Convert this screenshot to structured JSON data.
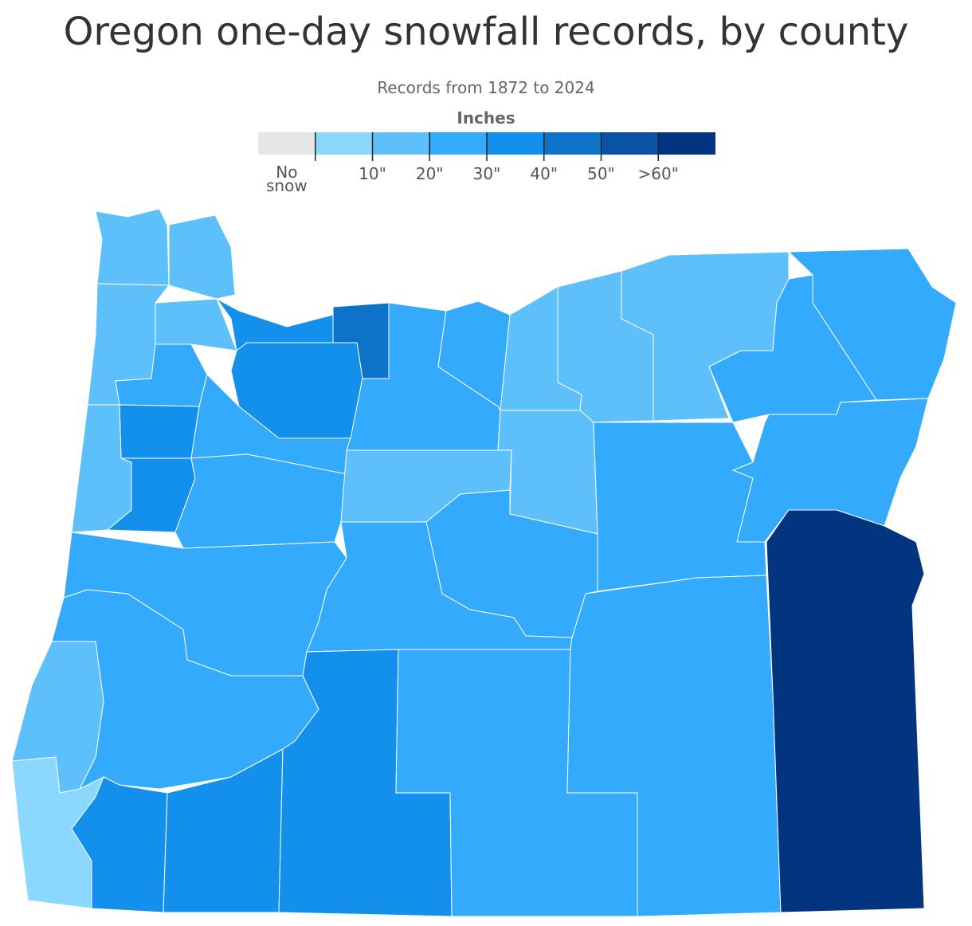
{
  "header": {
    "title": "Oregon one-day snowfall records, by county",
    "subtitle": "Records from 1872 to 2024"
  },
  "legend": {
    "title": "Inches",
    "colors": [
      "#e5e6e8",
      "#8bd8ff",
      "#5dc0fb",
      "#33aafc",
      "#1390ec",
      "#0e72c8",
      "#0a52a6",
      "#033480"
    ],
    "labels": [
      "No snow",
      "10\"",
      "20\"",
      "30\"",
      "40\"",
      "50\"",
      ">60\""
    ]
  },
  "counties": [
    {
      "bin": 2
    },
    {
      "bin": 2
    },
    {
      "bin": 2
    },
    {
      "bin": 2
    },
    {
      "bin": 4
    },
    {
      "bin": 5
    },
    {
      "bin": 4
    },
    {
      "bin": 3
    },
    {
      "bin": 4
    },
    {
      "bin": 2
    },
    {
      "bin": 3
    },
    {
      "bin": 4
    },
    {
      "bin": 3
    },
    {
      "bin": 3
    },
    {
      "bin": 3
    },
    {
      "bin": 2
    },
    {
      "bin": 2
    },
    {
      "bin": 2
    },
    {
      "bin": 3
    },
    {
      "bin": 3
    },
    {
      "bin": 3
    },
    {
      "bin": 2
    },
    {
      "bin": 2
    },
    {
      "bin": 3
    },
    {
      "bin": 3
    },
    {
      "bin": 3
    },
    {
      "bin": 3
    },
    {
      "bin": 3
    },
    {
      "bin": 2
    },
    {
      "bin": 1
    },
    {
      "bin": 4
    },
    {
      "bin": 4
    },
    {
      "bin": 4
    },
    {
      "bin": 3
    },
    {
      "bin": 3
    },
    {
      "bin": 7
    }
  ]
}
